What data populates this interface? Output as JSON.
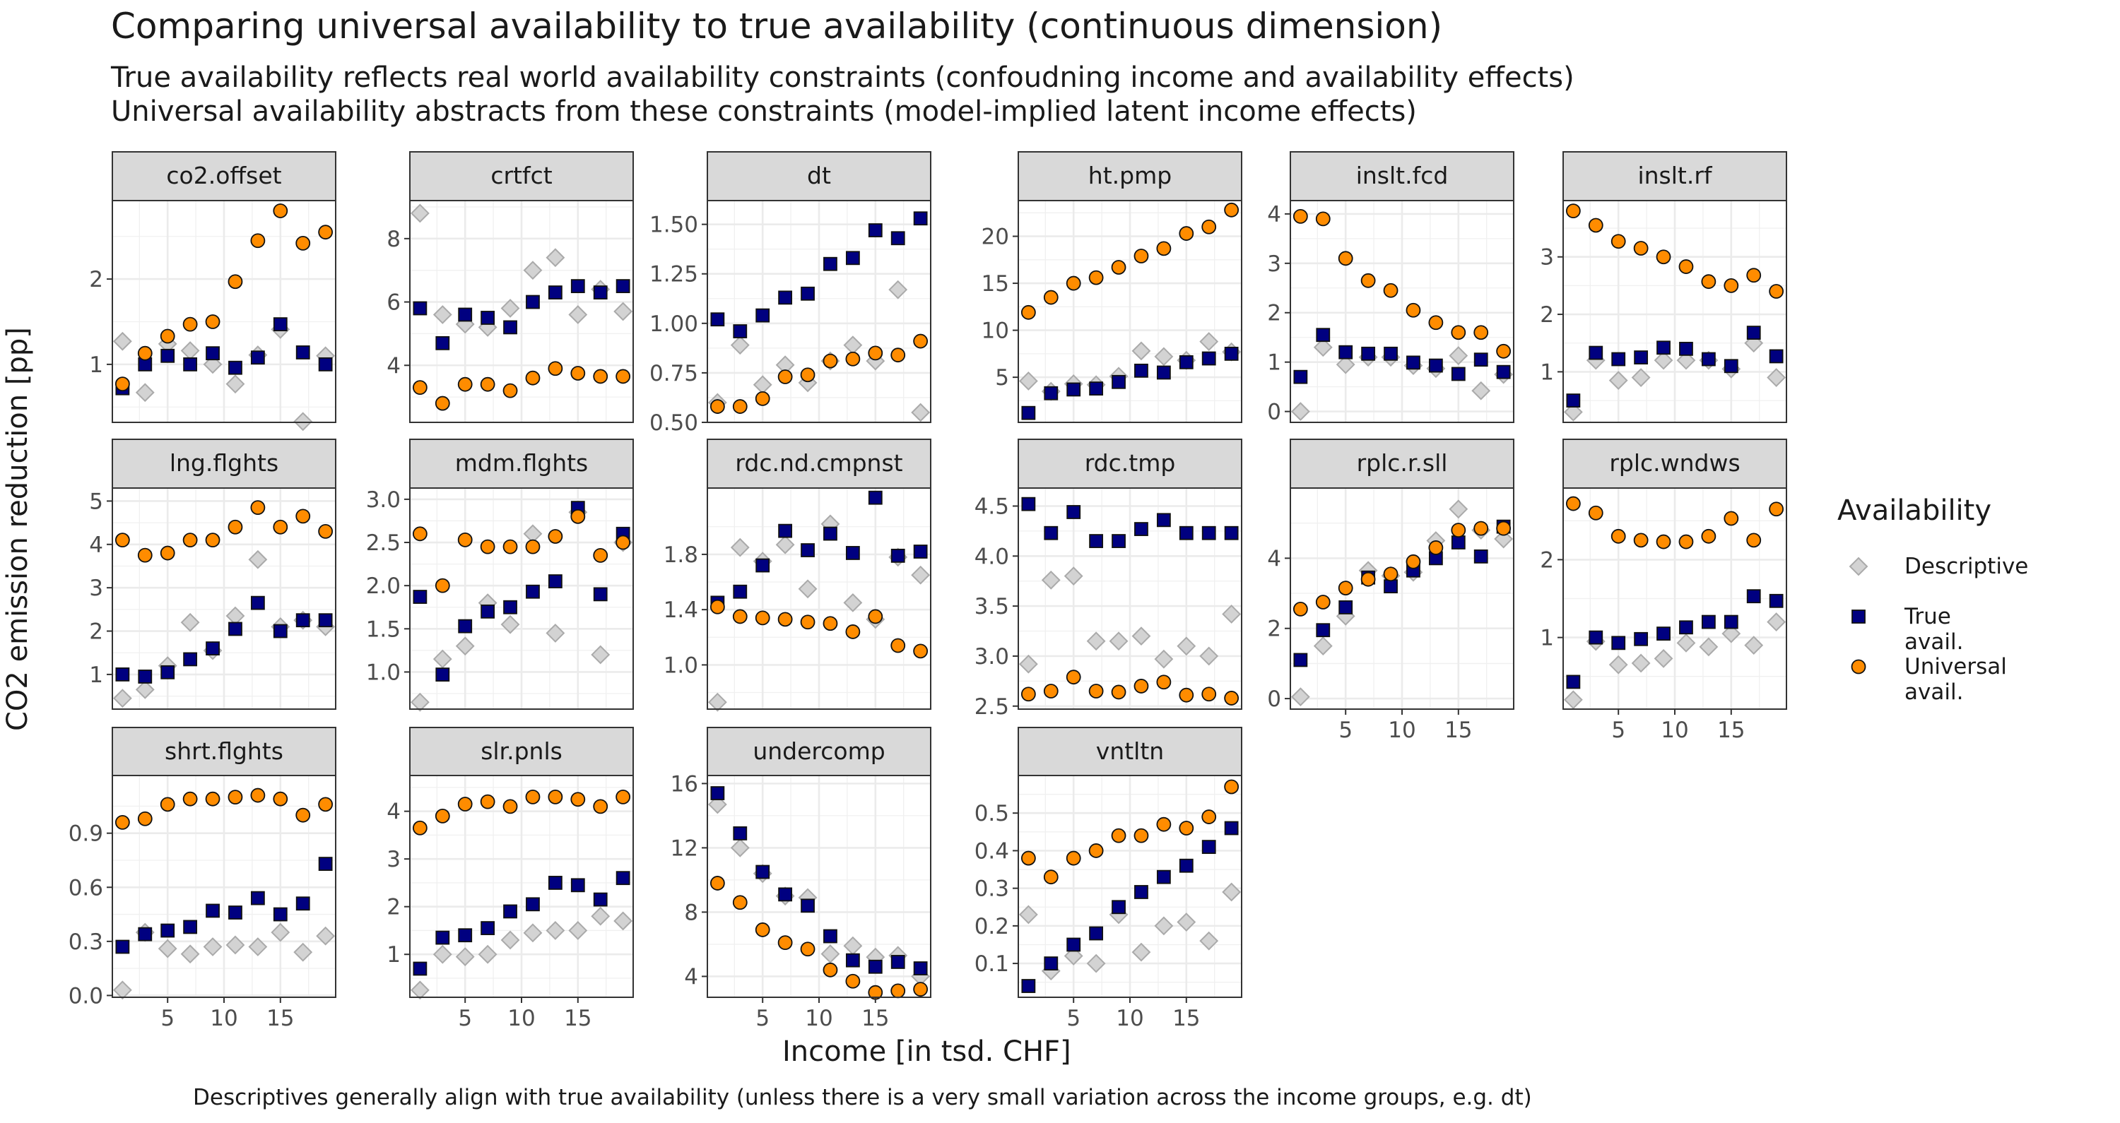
{
  "title": "Comparing universal availability to true availability (continuous dimension)",
  "subtitle": [
    "True availability reflects real world availability constraints (confoudning income and availability effects)",
    "Universal availability abstracts from these constraints (model-implied latent income effects)"
  ],
  "caption": "Descriptives generally align with true availability (unless there is a very small variation across the income groups, e.g. dt)",
  "legend": {
    "title": "Availability",
    "items": [
      {
        "label": "Descriptive",
        "shape": "diamond",
        "color": "#aaaaaa"
      },
      {
        "label": "True avail.",
        "shape": "square",
        "color": "#000080"
      },
      {
        "label": "Universal avail.",
        "shape": "circle",
        "color": "#ff8c00"
      }
    ]
  },
  "chart_data": {
    "type": "scatter",
    "xlabel": "Income [in tsd. CHF]",
    "ylabel": "CO2 emission reduction [pp]",
    "x": [
      1,
      3,
      5,
      7,
      9,
      11,
      13,
      15,
      17,
      19
    ],
    "x_ticks": [
      5,
      10,
      15
    ],
    "xlim": [
      0.1,
      19.9
    ],
    "facets": [
      {
        "name": "co2.offset",
        "ylim": [
          0.32,
          2.92
        ],
        "yticks": [
          1,
          2
        ],
        "yticklabels": [
          "1",
          "2"
        ],
        "descriptive": [
          1.27,
          0.67,
          1.24,
          1.16,
          1.0,
          0.77,
          1.11,
          1.41,
          0.33,
          1.1
        ],
        "true": [
          0.72,
          1.0,
          1.1,
          1.0,
          1.13,
          0.96,
          1.08,
          1.47,
          1.14,
          1.0
        ],
        "universal": [
          0.77,
          1.13,
          1.33,
          1.47,
          1.5,
          1.97,
          2.45,
          2.8,
          2.42,
          2.55
        ]
      },
      {
        "name": "crtfct",
        "ylim": [
          2.2,
          9.2
        ],
        "yticks": [
          4,
          6,
          8
        ],
        "yticklabels": [
          "4",
          "6",
          "8"
        ],
        "descriptive": [
          8.8,
          5.6,
          5.3,
          5.2,
          5.8,
          7.0,
          7.4,
          5.6,
          6.4,
          5.7
        ],
        "true": [
          5.8,
          4.7,
          5.6,
          5.5,
          5.2,
          6.0,
          6.3,
          6.5,
          6.3,
          6.5
        ],
        "universal": [
          3.3,
          2.8,
          3.4,
          3.4,
          3.2,
          3.6,
          3.9,
          3.75,
          3.65,
          3.65
        ]
      },
      {
        "name": "dt",
        "ylim": [
          0.5,
          1.62
        ],
        "yticks": [
          0.5,
          0.75,
          1.0,
          1.25,
          1.5
        ],
        "yticklabels": [
          "0.50",
          "0.75",
          "1.00",
          "1.25",
          "1.50"
        ],
        "descriptive": [
          0.6,
          0.89,
          0.69,
          0.79,
          0.7,
          0.81,
          0.89,
          0.81,
          1.17,
          0.55
        ],
        "true": [
          1.02,
          0.96,
          1.04,
          1.13,
          1.15,
          1.3,
          1.33,
          1.47,
          1.43,
          1.53
        ],
        "universal": [
          0.58,
          0.58,
          0.62,
          0.73,
          0.74,
          0.81,
          0.82,
          0.85,
          0.84,
          0.91
        ]
      },
      {
        "name": "ht.pmp",
        "ylim": [
          0.2,
          23.8
        ],
        "yticks": [
          5,
          10,
          15,
          20
        ],
        "yticklabels": [
          "5",
          "10",
          "15",
          "20"
        ],
        "descriptive": [
          4.6,
          3.5,
          4.3,
          4.2,
          5.1,
          7.8,
          7.2,
          6.8,
          8.8,
          7.7
        ],
        "true": [
          1.2,
          3.3,
          3.7,
          3.8,
          4.5,
          5.7,
          5.5,
          6.6,
          7.0,
          7.5
        ],
        "universal": [
          11.9,
          13.5,
          15.0,
          15.6,
          16.7,
          17.9,
          18.7,
          20.3,
          21.0,
          22.8
        ]
      },
      {
        "name": "inslt.fcd",
        "ylim": [
          -0.22,
          4.27
        ],
        "yticks": [
          0,
          1,
          2,
          3,
          4
        ],
        "yticklabels": [
          "0",
          "1",
          "2",
          "3",
          "4"
        ],
        "descriptive": [
          0.0,
          1.3,
          0.95,
          1.1,
          1.1,
          0.93,
          0.87,
          1.13,
          0.42,
          0.75
        ],
        "true": [
          0.7,
          1.55,
          1.2,
          1.17,
          1.17,
          0.99,
          0.93,
          0.76,
          1.05,
          0.8
        ],
        "universal": [
          3.95,
          3.9,
          3.1,
          2.65,
          2.45,
          2.05,
          1.8,
          1.6,
          1.6,
          1.22
        ]
      },
      {
        "name": "inslt.rf",
        "ylim": [
          0.12,
          3.98
        ],
        "yticks": [
          1,
          2,
          3
        ],
        "yticklabels": [
          "1",
          "2",
          "3"
        ],
        "descriptive": [
          0.3,
          1.2,
          0.85,
          0.9,
          1.2,
          1.2,
          1.2,
          1.05,
          1.5,
          0.9
        ],
        "true": [
          0.5,
          1.33,
          1.22,
          1.25,
          1.42,
          1.4,
          1.22,
          1.1,
          1.68,
          1.27
        ],
        "universal": [
          3.8,
          3.55,
          3.27,
          3.15,
          3.0,
          2.83,
          2.57,
          2.5,
          2.68,
          2.4
        ]
      },
      {
        "name": "lng.flghts",
        "ylim": [
          0.2,
          5.3
        ],
        "yticks": [
          1,
          2,
          3,
          4,
          5
        ],
        "yticklabels": [
          "1",
          "2",
          "3",
          "4",
          "5"
        ],
        "descriptive": [
          0.45,
          0.65,
          1.2,
          2.2,
          1.55,
          2.35,
          3.65,
          2.1,
          2.25,
          2.1
        ],
        "true": [
          1.0,
          0.95,
          1.05,
          1.35,
          1.6,
          2.05,
          2.65,
          2.0,
          2.25,
          2.25
        ],
        "universal": [
          4.1,
          3.75,
          3.8,
          4.1,
          4.1,
          4.4,
          4.85,
          4.4,
          4.65,
          4.3
        ]
      },
      {
        "name": "mdm.flghts",
        "ylim": [
          0.57,
          3.13
        ],
        "yticks": [
          1.0,
          1.5,
          2.0,
          2.5,
          3.0
        ],
        "yticklabels": [
          "1.0",
          "1.5",
          "2.0",
          "2.5",
          "3.0"
        ],
        "descriptive": [
          0.65,
          1.15,
          1.3,
          1.8,
          1.55,
          2.6,
          1.45,
          2.85,
          1.2,
          2.5
        ],
        "true": [
          1.87,
          0.97,
          1.53,
          1.7,
          1.75,
          1.93,
          2.05,
          2.9,
          1.9,
          2.6
        ],
        "universal": [
          2.6,
          2.0,
          2.53,
          2.45,
          2.45,
          2.45,
          2.57,
          2.8,
          2.35,
          2.5
        ]
      },
      {
        "name": "rdc.nd.cmpnst",
        "ylim": [
          0.68,
          2.28
        ],
        "yticks": [
          1.0,
          1.4,
          1.8
        ],
        "yticklabels": [
          "1.0",
          "1.4",
          "1.8"
        ],
        "descriptive": [
          0.73,
          1.85,
          1.75,
          1.87,
          1.55,
          2.02,
          1.45,
          1.33,
          1.78,
          1.65
        ],
        "true": [
          1.45,
          1.53,
          1.72,
          1.97,
          1.83,
          1.95,
          1.81,
          2.21,
          1.79,
          1.82
        ],
        "universal": [
          1.42,
          1.35,
          1.34,
          1.33,
          1.31,
          1.3,
          1.24,
          1.35,
          1.14,
          1.1
        ]
      },
      {
        "name": "rdc.tmp",
        "ylim": [
          2.47,
          4.68
        ],
        "yticks": [
          2.5,
          3.0,
          3.5,
          4.0,
          4.5
        ],
        "yticklabels": [
          "2.5",
          "3.0",
          "3.5",
          "4.0",
          "4.5"
        ],
        "descriptive": [
          2.92,
          3.76,
          3.8,
          3.15,
          3.15,
          3.2,
          2.97,
          3.1,
          3.0,
          3.42
        ],
        "true": [
          4.52,
          4.23,
          4.44,
          4.15,
          4.15,
          4.27,
          4.36,
          4.23,
          4.23,
          4.23
        ],
        "universal": [
          2.62,
          2.65,
          2.79,
          2.65,
          2.64,
          2.7,
          2.74,
          2.61,
          2.62,
          2.58
        ]
      },
      {
        "name": "rplc.r.sll",
        "ylim": [
          -0.3,
          6.0
        ],
        "yticks": [
          0,
          2,
          4
        ],
        "yticklabels": [
          "0",
          "2",
          "4"
        ],
        "descriptive": [
          0.05,
          1.5,
          2.35,
          3.65,
          3.5,
          3.6,
          4.5,
          5.4,
          4.8,
          4.55
        ],
        "true": [
          1.1,
          1.95,
          2.6,
          3.45,
          3.2,
          3.65,
          4.0,
          4.45,
          4.05,
          4.9
        ],
        "universal": [
          2.55,
          2.75,
          3.15,
          3.4,
          3.55,
          3.9,
          4.3,
          4.8,
          4.85,
          4.85
        ]
      },
      {
        "name": "rplc.wndws",
        "ylim": [
          0.08,
          2.92
        ],
        "yticks": [
          1,
          2
        ],
        "yticklabels": [
          "1",
          "2"
        ],
        "descriptive": [
          0.2,
          0.95,
          0.65,
          0.67,
          0.73,
          0.93,
          0.88,
          1.05,
          0.9,
          1.2
        ],
        "true": [
          0.43,
          1.0,
          0.93,
          0.98,
          1.05,
          1.13,
          1.2,
          1.2,
          1.53,
          1.47
        ],
        "universal": [
          2.72,
          2.6,
          2.3,
          2.25,
          2.23,
          2.23,
          2.3,
          2.53,
          2.25,
          2.65
        ]
      },
      {
        "name": "shrt.flghts",
        "ylim": [
          -0.01,
          1.22
        ],
        "yticks": [
          0.0,
          0.3,
          0.6,
          0.9
        ],
        "yticklabels": [
          "0.0",
          "0.3",
          "0.6",
          "0.9"
        ],
        "descriptive": [
          0.03,
          0.35,
          0.26,
          0.23,
          0.27,
          0.28,
          0.27,
          0.35,
          0.24,
          0.33
        ],
        "true": [
          0.27,
          0.34,
          0.36,
          0.38,
          0.47,
          0.46,
          0.54,
          0.45,
          0.51,
          0.73
        ],
        "universal": [
          0.96,
          0.98,
          1.06,
          1.09,
          1.09,
          1.1,
          1.11,
          1.09,
          1.0,
          1.06
        ]
      },
      {
        "name": "slr.pnls",
        "ylim": [
          0.1,
          4.75
        ],
        "yticks": [
          1,
          2,
          3,
          4
        ],
        "yticklabels": [
          "1",
          "2",
          "3",
          "4"
        ],
        "descriptive": [
          0.25,
          1.0,
          0.95,
          1.0,
          1.3,
          1.45,
          1.5,
          1.5,
          1.8,
          1.7
        ],
        "true": [
          0.7,
          1.35,
          1.4,
          1.55,
          1.9,
          2.05,
          2.5,
          2.45,
          2.15,
          2.6
        ],
        "universal": [
          3.65,
          3.9,
          4.15,
          4.2,
          4.1,
          4.3,
          4.3,
          4.25,
          4.1,
          4.3
        ]
      },
      {
        "name": "undercomp",
        "ylim": [
          2.7,
          16.5
        ],
        "yticks": [
          4,
          8,
          12,
          16
        ],
        "yticklabels": [
          "4",
          "8",
          "12",
          "16"
        ],
        "descriptive": [
          14.7,
          12.0,
          10.4,
          9.0,
          8.9,
          5.4,
          5.9,
          5.2,
          5.3,
          4.0
        ],
        "true": [
          15.4,
          12.9,
          10.5,
          9.1,
          8.4,
          6.5,
          5.0,
          4.6,
          4.9,
          4.5
        ],
        "universal": [
          9.8,
          8.6,
          6.9,
          6.1,
          5.7,
          4.4,
          3.7,
          3.0,
          3.1,
          3.2
        ]
      },
      {
        "name": "vntltn",
        "ylim": [
          0.01,
          0.6
        ],
        "yticks": [
          0.1,
          0.2,
          0.3,
          0.4,
          0.5
        ],
        "yticklabels": [
          "0.1",
          "0.2",
          "0.3",
          "0.4",
          "0.5"
        ],
        "descriptive": [
          0.23,
          0.08,
          0.12,
          0.1,
          0.23,
          0.13,
          0.2,
          0.21,
          0.16,
          0.29
        ],
        "true": [
          0.04,
          0.1,
          0.15,
          0.18,
          0.25,
          0.29,
          0.33,
          0.36,
          0.41,
          0.46
        ],
        "universal": [
          0.38,
          0.33,
          0.38,
          0.4,
          0.44,
          0.44,
          0.47,
          0.46,
          0.49,
          0.57
        ]
      }
    ]
  }
}
